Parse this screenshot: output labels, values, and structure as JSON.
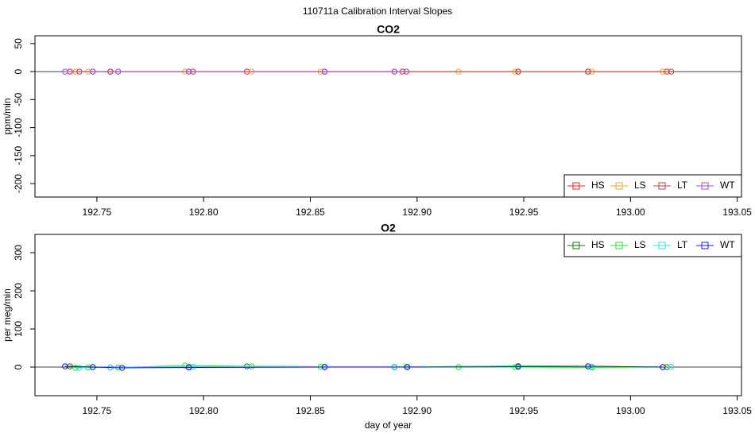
{
  "title": "110711a   Calibration Interval Slopes",
  "chart_data": [
    {
      "type": "line",
      "title": "CO2",
      "y_label": "ppm/min",
      "legend": "bottom-right",
      "zero_line": true,
      "xlim": [
        192.721,
        193.052
      ],
      "ylim": [
        -224,
        64
      ],
      "xticks": [
        192.75,
        {
          "value": 192.8,
          "label": "192.80"
        },
        192.85,
        {
          "value": 192.9,
          "label": "192.90"
        },
        192.95,
        {
          "value": 193.0,
          "label": "193.00"
        },
        193.05
      ],
      "yticks": [
        50,
        0,
        -50,
        -100,
        -150,
        -200
      ],
      "series": [
        {
          "name": "HS",
          "color": "#e8262a",
          "x": [
            192.7374,
            192.7563,
            192.7931,
            192.8203,
            192.8567,
            192.8931,
            192.9474,
            192.9801,
            193.017
          ],
          "values": [
            0,
            0,
            0,
            0,
            0,
            0,
            0,
            0,
            0
          ]
        },
        {
          "name": "LS",
          "color": "#f5a623",
          "x": [
            192.74,
            192.7459,
            192.76,
            192.7913,
            192.8225,
            192.8548,
            192.895,
            192.9195,
            192.9459,
            192.982,
            193.0151
          ],
          "values": [
            0,
            0,
            0,
            0,
            0,
            0,
            0,
            0,
            0,
            0,
            0
          ]
        },
        {
          "name": "LT",
          "color": "#b5474b",
          "x": [
            192.7418,
            192.7481,
            192.7563,
            192.795,
            192.8567,
            192.8894,
            192.9474,
            192.9801,
            193.0191
          ],
          "values": [
            0,
            0,
            0,
            0,
            0,
            0,
            0,
            0,
            0
          ]
        },
        {
          "name": "WT",
          "color": "#a64dd6",
          "x": [
            192.7351,
            192.7481,
            192.76,
            192.7931,
            192.8567,
            192.8894,
            192.895
          ],
          "values": [
            0,
            0,
            0,
            0,
            0,
            0,
            0
          ]
        }
      ]
    },
    {
      "type": "line",
      "title": "O2",
      "y_label": "per meg/min",
      "x_label": "day of year",
      "legend": "top-right",
      "zero_line": true,
      "xlim": [
        192.721,
        193.052
      ],
      "ylim": [
        -75,
        348
      ],
      "xticks": [
        192.75,
        {
          "value": 192.8,
          "label": "192.80"
        },
        192.85,
        {
          "value": 192.9,
          "label": "192.90"
        },
        192.95,
        {
          "value": 193.0,
          "label": "193.00"
        },
        193.05
      ],
      "yticks": [
        0,
        100,
        200,
        300
      ],
      "series": [
        {
          "name": "HS",
          "color": "#1e6b1e",
          "x": [
            192.7374,
            192.7563,
            192.7931,
            192.8203,
            192.8567,
            192.8894,
            192.9474,
            192.9801,
            193.017
          ],
          "values": [
            2,
            -1,
            0,
            2,
            1,
            0,
            3,
            2,
            0
          ]
        },
        {
          "name": "LS",
          "color": "#2ee02e",
          "x": [
            192.74,
            192.7459,
            192.76,
            192.7913,
            192.8225,
            192.8548,
            192.895,
            192.9195,
            192.9459,
            192.982,
            193.0151
          ],
          "values": [
            -2,
            -1,
            -1,
            4,
            2,
            1,
            1,
            0,
            0,
            -1,
            0
          ]
        },
        {
          "name": "LT",
          "color": "#33e0e0",
          "x": [
            192.7418,
            192.7481,
            192.7563,
            192.795,
            192.8567,
            192.8894,
            192.9474,
            192.982,
            193.0191
          ],
          "values": [
            -2,
            0,
            -1,
            1,
            1,
            1,
            2,
            1,
            1
          ]
        },
        {
          "name": "WT",
          "color": "#1c1cd6",
          "x": [
            192.7351,
            192.7481,
            192.7618,
            192.7931,
            192.8567,
            192.8955,
            192.9474,
            192.9801,
            193.0151
          ],
          "values": [
            2,
            0,
            -2,
            -1,
            0,
            0,
            1,
            2,
            0
          ]
        }
      ]
    }
  ]
}
